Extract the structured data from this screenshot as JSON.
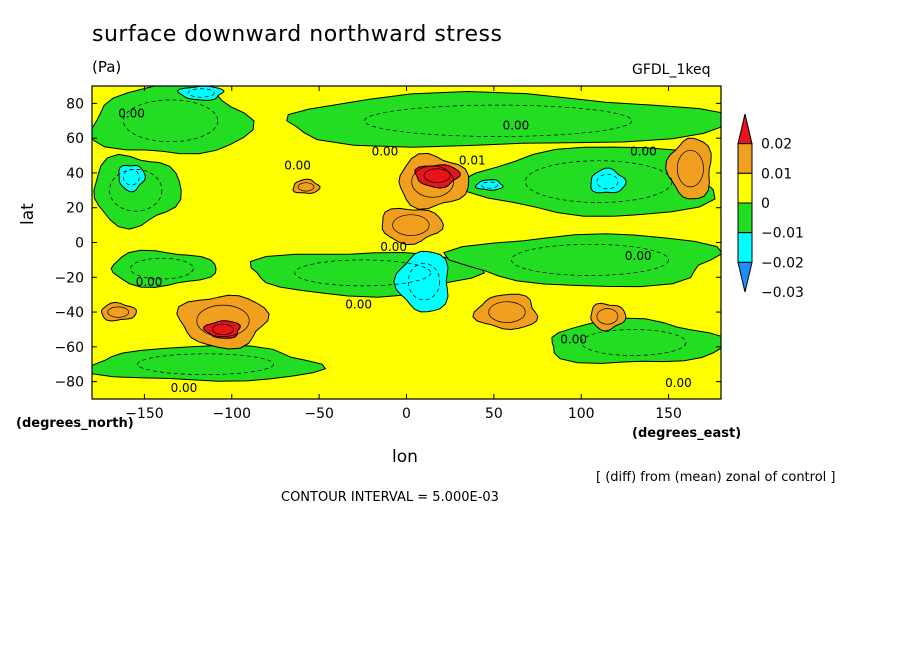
{
  "title": "surface downward northward stress",
  "units": "(Pa)",
  "model_label": "GFDL_1keq",
  "note": "[ (diff) from (mean) zonal of control ]",
  "contour_interval": "CONTOUR INTERVAL = 5.000E-03",
  "colors": {
    "red": "#e8141c",
    "orange": "#f0a01e",
    "yellow": "#ffff00",
    "green": "#22dd22",
    "cyan": "#00ffff",
    "blue": "#1e8cff"
  },
  "chart_data": {
    "type": "heatmap",
    "title": "surface downward northward stress",
    "xlabel": "lon",
    "ylabel": "lat",
    "x_units": "(degrees_east)",
    "y_units": "(degrees_north)",
    "xlim": [
      -180,
      180
    ],
    "ylim": [
      -90,
      90
    ],
    "x_ticks": [
      -150,
      -100,
      -50,
      0,
      50,
      100,
      150
    ],
    "y_ticks": [
      -80,
      -60,
      -40,
      -20,
      0,
      20,
      40,
      60,
      80
    ],
    "x_tick_labels": [
      "−150",
      "−100",
      "−50",
      "0",
      "50",
      "100",
      "150"
    ],
    "y_tick_labels": [
      "−80",
      "−60",
      "−40",
      "−20",
      "0",
      "20",
      "40",
      "60",
      "80"
    ],
    "colorbar": {
      "levels": [
        0.02,
        0.01,
        0,
        -0.01,
        -0.02,
        -0.03
      ],
      "level_labels": [
        "0.02",
        "0.01",
        "0",
        "−0.01",
        "−0.02",
        "−0.03"
      ],
      "range_colors": [
        "red",
        "orange",
        "yellow",
        "green",
        "cyan",
        "blue"
      ]
    },
    "background_value_color": "yellow",
    "regions": [
      {
        "kind": "green",
        "lon": [
          -180,
          -90
        ],
        "lat": [
          50,
          90
        ]
      },
      {
        "kind": "green",
        "lon": [
          -75,
          180
        ],
        "lat": [
          55,
          85
        ]
      },
      {
        "kind": "green",
        "lon": [
          -180,
          -130
        ],
        "lat": [
          10,
          50
        ]
      },
      {
        "kind": "green",
        "lon": [
          -90,
          40
        ],
        "lat": [
          -30,
          -5
        ]
      },
      {
        "kind": "green",
        "lon": [
          30,
          180
        ],
        "lat": [
          -25,
          5
        ]
      },
      {
        "kind": "green",
        "lon": [
          40,
          180
        ],
        "lat": [
          15,
          55
        ]
      },
      {
        "kind": "green",
        "lon": [
          -180,
          -50
        ],
        "lat": [
          -80,
          -60
        ]
      },
      {
        "kind": "green",
        "lon": [
          80,
          180
        ],
        "lat": [
          -70,
          -45
        ]
      },
      {
        "kind": "green",
        "lon": [
          -170,
          -110
        ],
        "lat": [
          -25,
          -5
        ]
      },
      {
        "kind": "cyan",
        "lon": [
          -165,
          -150
        ],
        "lat": [
          30,
          45
        ]
      },
      {
        "kind": "cyan",
        "lon": [
          -130,
          -105
        ],
        "lat": [
          82,
          90
        ]
      },
      {
        "kind": "cyan",
        "lon": [
          -5,
          25
        ],
        "lat": [
          -40,
          -5
        ]
      },
      {
        "kind": "cyan",
        "lon": [
          40,
          55
        ],
        "lat": [
          30,
          36
        ]
      },
      {
        "kind": "cyan",
        "lon": [
          105,
          125
        ],
        "lat": [
          28,
          42
        ]
      },
      {
        "kind": "orange",
        "lon": [
          -5,
          35
        ],
        "lat": [
          20,
          50
        ]
      },
      {
        "kind": "orange",
        "lon": [
          -15,
          20
        ],
        "lat": [
          0,
          20
        ]
      },
      {
        "kind": "orange",
        "lon": [
          -130,
          -80
        ],
        "lat": [
          -60,
          -30
        ]
      },
      {
        "kind": "orange",
        "lon": [
          150,
          175
        ],
        "lat": [
          25,
          60
        ]
      },
      {
        "kind": "orange",
        "lon": [
          40,
          75
        ],
        "lat": [
          -50,
          -30
        ]
      },
      {
        "kind": "orange",
        "lon": [
          -65,
          -50
        ],
        "lat": [
          28,
          36
        ]
      },
      {
        "kind": "orange",
        "lon": [
          -175,
          -155
        ],
        "lat": [
          -45,
          -35
        ]
      },
      {
        "kind": "orange",
        "lon": [
          105,
          125
        ],
        "lat": [
          -50,
          -35
        ]
      },
      {
        "kind": "red",
        "lon": [
          5,
          30
        ],
        "lat": [
          32,
          45
        ]
      },
      {
        "kind": "red",
        "lon": [
          -115,
          -95
        ],
        "lat": [
          -55,
          -45
        ]
      }
    ],
    "contour_labels": [
      {
        "text": "0.00",
        "lon": -165,
        "lat": 72
      },
      {
        "text": "0.00",
        "lon": -70,
        "lat": 42
      },
      {
        "text": "0.00",
        "lon": -20,
        "lat": 50
      },
      {
        "text": "0.01",
        "lon": 30,
        "lat": 45
      },
      {
        "text": "0.00",
        "lon": 55,
        "lat": 65
      },
      {
        "text": "0.00",
        "lon": 128,
        "lat": 50
      },
      {
        "text": "0.00",
        "lon": -15,
        "lat": -5
      },
      {
        "text": "0.00",
        "lon": -155,
        "lat": -25
      },
      {
        "text": "0.00",
        "lon": -35,
        "lat": -38
      },
      {
        "text": "0.00",
        "lon": 88,
        "lat": -58
      },
      {
        "text": "0.00",
        "lon": 125,
        "lat": -10
      },
      {
        "text": "0.00",
        "lon": -135,
        "lat": -86
      },
      {
        "text": "0.00",
        "lon": 148,
        "lat": -83
      }
    ]
  }
}
